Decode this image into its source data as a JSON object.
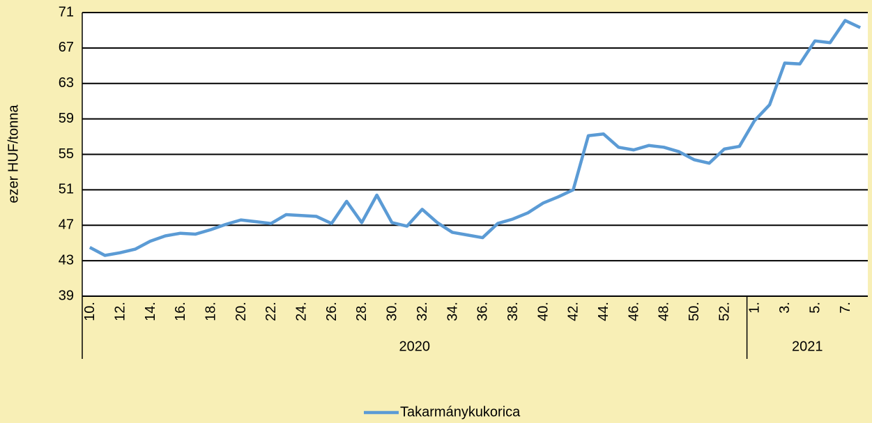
{
  "chart_data": {
    "type": "line",
    "y_label": "ezer HUF/tonna",
    "categories": [
      "10.",
      null,
      "12.",
      null,
      "14.",
      null,
      "16.",
      null,
      "18.",
      null,
      "20.",
      null,
      "22.",
      null,
      "24.",
      null,
      "26.",
      null,
      "28.",
      null,
      "30.",
      null,
      "32.",
      null,
      "34.",
      null,
      "36.",
      null,
      "38.",
      null,
      "40.",
      null,
      "42.",
      null,
      "44.",
      null,
      "46.",
      null,
      "48.",
      null,
      "50.",
      null,
      "52.",
      null,
      "1.",
      null,
      "3.",
      null,
      "5.",
      null,
      "7.",
      null
    ],
    "groups": [
      {
        "label": "2020",
        "start": 0,
        "end": 43
      },
      {
        "label": "2021",
        "start": 44,
        "end": 51
      }
    ],
    "series": [
      {
        "name": "Takarmánykukorica",
        "color": "#5b9bd5",
        "values": [
          44.5,
          43.6,
          43.9,
          44.3,
          45.2,
          45.8,
          46.1,
          46.0,
          46.5,
          47.1,
          47.6,
          47.4,
          47.2,
          48.2,
          48.1,
          48.0,
          47.2,
          49.7,
          47.3,
          50.4,
          47.3,
          46.9,
          48.8,
          47.3,
          46.2,
          45.9,
          45.6,
          47.2,
          47.7,
          48.4,
          49.5,
          50.2,
          51.0,
          57.1,
          57.3,
          55.8,
          55.5,
          56.0,
          55.8,
          55.3,
          54.4,
          54.0,
          55.6,
          55.9,
          58.8,
          60.6,
          65.3,
          65.2,
          67.8,
          67.6,
          70.1,
          69.3
        ]
      }
    ],
    "ylim": [
      39,
      71
    ],
    "yticks": [
      39,
      43,
      47,
      51,
      55,
      59,
      63,
      67,
      71
    ],
    "grid": true,
    "legend": "bottom"
  }
}
